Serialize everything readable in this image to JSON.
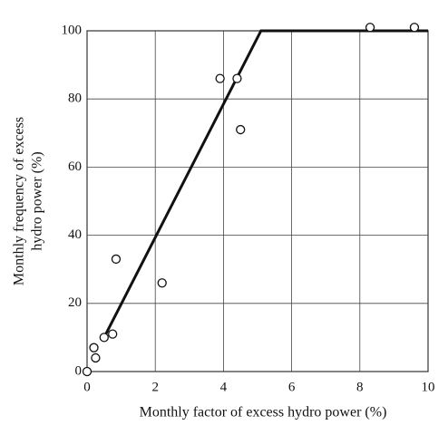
{
  "chart_data": {
    "type": "scatter",
    "xlabel": "Monthly factor of excess hydro power (%)",
    "ylabel": [
      "Monthly frequency of excess",
      "hydro power (%)"
    ],
    "xlim": [
      0,
      10
    ],
    "ylim": [
      0,
      100
    ],
    "xticks": [
      0,
      2,
      4,
      6,
      8,
      10
    ],
    "yticks": [
      0,
      20,
      40,
      60,
      80,
      100
    ],
    "grid": true,
    "series": [
      {
        "color": "#111",
        "x": [
          0,
          0.2,
          0.25,
          0.5,
          0.75,
          0.85,
          2.2,
          3.9,
          4.4,
          4.5,
          8.3,
          9.6
        ],
        "values": [
          0,
          7,
          4,
          10,
          11,
          33,
          26,
          86,
          86,
          71,
          101,
          101
        ]
      }
    ],
    "lines": [
      {
        "color": "#111",
        "x": [
          0.5,
          5.1,
          10
        ],
        "values": [
          10,
          100,
          100
        ]
      }
    ]
  }
}
